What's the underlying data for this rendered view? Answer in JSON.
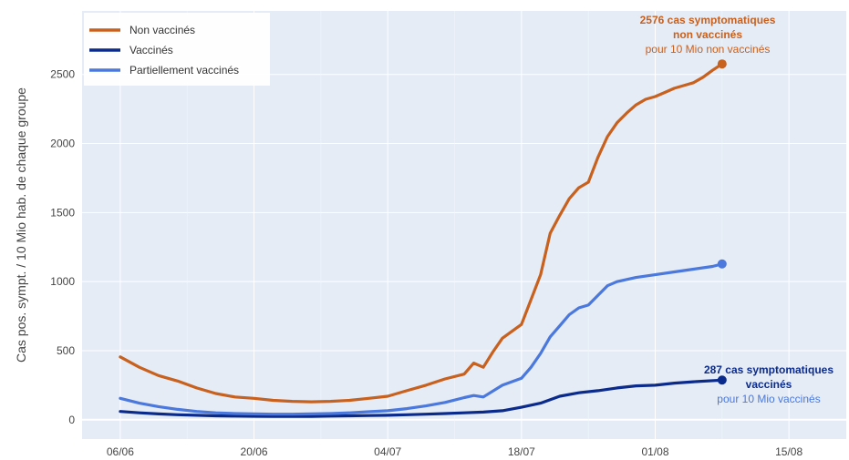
{
  "chart_data": {
    "type": "line",
    "title": "",
    "xlabel": "",
    "ylabel": "Cas pos. sympt. / 10 Mio hab. de chaque groupe",
    "x_tick_labels": [
      "06/06",
      "20/06",
      "04/07",
      "18/07",
      "01/08",
      "15/08"
    ],
    "x_range": [
      "2021-06-02",
      "2021-08-21"
    ],
    "ylim": [
      -140,
      2960
    ],
    "y_ticks": [
      0,
      500,
      1000,
      1500,
      2000,
      2500
    ],
    "grid": true,
    "legend_position": "top-left",
    "background": "#e5ecf6",
    "series": [
      {
        "name": "Non vaccinés",
        "color": "#c8601e",
        "x": [
          "2021-06-06",
          "2021-06-08",
          "2021-06-10",
          "2021-06-12",
          "2021-06-14",
          "2021-06-16",
          "2021-06-18",
          "2021-06-20",
          "2021-06-22",
          "2021-06-24",
          "2021-06-26",
          "2021-06-28",
          "2021-06-30",
          "2021-07-02",
          "2021-07-04",
          "2021-07-06",
          "2021-07-08",
          "2021-07-10",
          "2021-07-12",
          "2021-07-13",
          "2021-07-14",
          "2021-07-15",
          "2021-07-16",
          "2021-07-17",
          "2021-07-18",
          "2021-07-19",
          "2021-07-20",
          "2021-07-21",
          "2021-07-22",
          "2021-07-23",
          "2021-07-24",
          "2021-07-25",
          "2021-07-26",
          "2021-07-27",
          "2021-07-28",
          "2021-07-29",
          "2021-07-30",
          "2021-07-31",
          "2021-08-01",
          "2021-08-02",
          "2021-08-03",
          "2021-08-04",
          "2021-08-05",
          "2021-08-06",
          "2021-08-07",
          "2021-08-08"
        ],
        "values": [
          455,
          380,
          320,
          280,
          230,
          190,
          165,
          155,
          140,
          133,
          130,
          133,
          140,
          155,
          170,
          210,
          250,
          295,
          330,
          410,
          380,
          490,
          590,
          640,
          690,
          870,
          1050,
          1350,
          1480,
          1600,
          1680,
          1720,
          1900,
          2050,
          2150,
          2220,
          2280,
          2320,
          2340,
          2370,
          2400,
          2420,
          2440,
          2480,
          2530,
          2576
        ]
      },
      {
        "name": "Vaccinés",
        "color": "#0b2b8c",
        "x": [
          "2021-06-06",
          "2021-06-08",
          "2021-06-10",
          "2021-06-12",
          "2021-06-14",
          "2021-06-16",
          "2021-06-18",
          "2021-06-20",
          "2021-06-22",
          "2021-06-24",
          "2021-06-26",
          "2021-06-28",
          "2021-06-30",
          "2021-07-02",
          "2021-07-04",
          "2021-07-06",
          "2021-07-08",
          "2021-07-10",
          "2021-07-12",
          "2021-07-14",
          "2021-07-16",
          "2021-07-18",
          "2021-07-20",
          "2021-07-22",
          "2021-07-24",
          "2021-07-26",
          "2021-07-28",
          "2021-07-30",
          "2021-08-01",
          "2021-08-03",
          "2021-08-05",
          "2021-08-08"
        ],
        "values": [
          60,
          50,
          42,
          36,
          32,
          28,
          26,
          25,
          24,
          24,
          24,
          26,
          28,
          30,
          32,
          36,
          40,
          45,
          50,
          55,
          65,
          90,
          120,
          170,
          195,
          210,
          230,
          245,
          250,
          265,
          275,
          287
        ]
      },
      {
        "name": "Partiellement vaccinés",
        "color": "#4a78dc",
        "x": [
          "2021-06-06",
          "2021-06-08",
          "2021-06-10",
          "2021-06-12",
          "2021-06-14",
          "2021-06-16",
          "2021-06-18",
          "2021-06-20",
          "2021-06-22",
          "2021-06-24",
          "2021-06-26",
          "2021-06-28",
          "2021-06-30",
          "2021-07-02",
          "2021-07-04",
          "2021-07-06",
          "2021-07-08",
          "2021-07-10",
          "2021-07-12",
          "2021-07-13",
          "2021-07-14",
          "2021-07-16",
          "2021-07-18",
          "2021-07-19",
          "2021-07-20",
          "2021-07-21",
          "2021-07-22",
          "2021-07-23",
          "2021-07-24",
          "2021-07-25",
          "2021-07-26",
          "2021-07-27",
          "2021-07-28",
          "2021-07-30",
          "2021-08-01",
          "2021-08-03",
          "2021-08-05",
          "2021-08-07",
          "2021-08-08"
        ],
        "values": [
          155,
          120,
          95,
          75,
          60,
          50,
          45,
          42,
          40,
          40,
          42,
          45,
          50,
          58,
          65,
          80,
          100,
          125,
          160,
          175,
          165,
          250,
          300,
          380,
          480,
          600,
          680,
          760,
          810,
          830,
          900,
          970,
          1000,
          1030,
          1050,
          1070,
          1090,
          1110,
          1128
        ]
      }
    ],
    "annotations": [
      {
        "series": "Non vaccinés",
        "lines": [
          "2576 cas symptomatiques",
          "non vaccinés",
          "pour 10 Mio non vaccinés"
        ],
        "bold_lines": 2,
        "color": "#c8601e"
      },
      {
        "series": "Vaccinés",
        "lines": [
          "287 cas symptomatiques",
          "vaccinés",
          "pour 10 Mio vaccinés"
        ],
        "bold_lines": 2,
        "color": "#0b2b8c",
        "secondary_color": "#4a78dc"
      }
    ]
  }
}
